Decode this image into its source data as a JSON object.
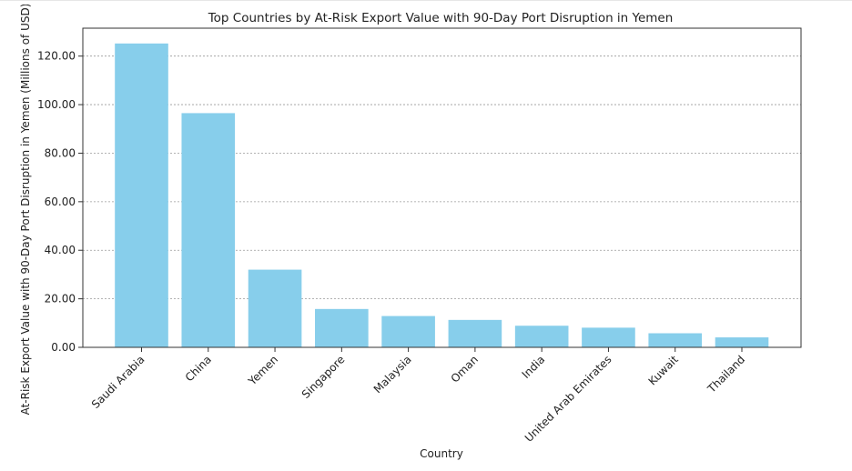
{
  "chart_data": {
    "type": "bar",
    "title": "Top Countries by At-Risk Export Value with 90-Day Port Disruption in Yemen",
    "xlabel": "Country",
    "ylabel": "At-Risk Export Value with 90-Day Port Disruption in Yemen (Millions of USD)",
    "categories": [
      "Saudi Arabia",
      "China",
      "Yemen",
      "Singapore",
      "Malaysia",
      "Oman",
      "India",
      "United Arab Emirates",
      "Kuwait",
      "Thailand"
    ],
    "values": [
      125.2,
      96.5,
      32.0,
      15.8,
      12.9,
      11.3,
      8.9,
      8.1,
      5.8,
      4.1
    ],
    "yticks": [
      0,
      20,
      40,
      60,
      80,
      100,
      120
    ],
    "ytick_labels": [
      "0.00",
      "20.00",
      "40.00",
      "60.00",
      "80.00",
      "100.00",
      "120.00"
    ],
    "ylim": [
      0,
      131.5
    ],
    "grid": "y-axis, dashed",
    "bar_color": "#87CEEB"
  }
}
